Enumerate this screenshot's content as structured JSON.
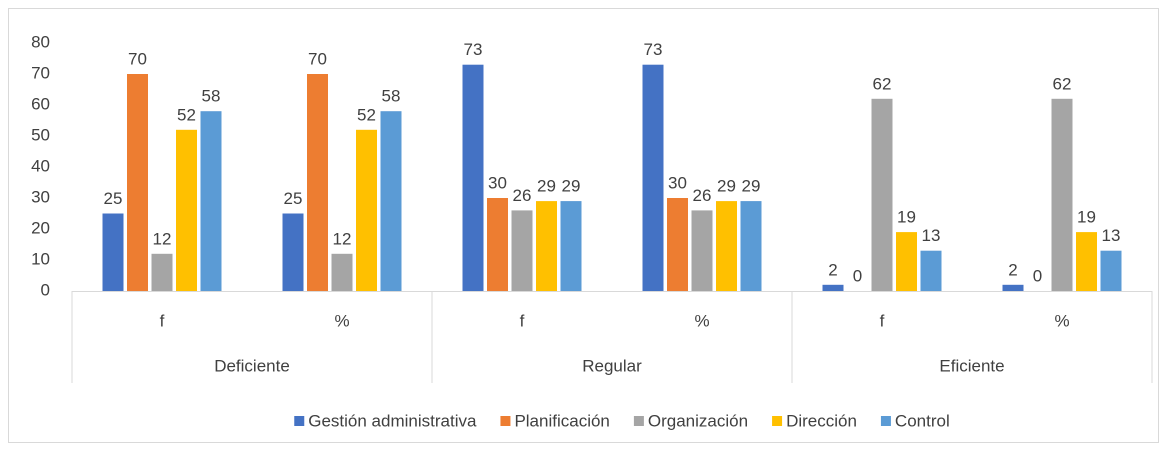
{
  "chart_data": {
    "type": "bar",
    "categories": [
      "f",
      "%",
      "f",
      "%",
      "f",
      "%"
    ],
    "groups": [
      "Deficiente",
      "Regular",
      "Eficiente"
    ],
    "series": [
      {
        "name": "Gestión administrativa",
        "color": "#4472c4",
        "values": [
          25,
          25,
          73,
          73,
          2,
          2
        ]
      },
      {
        "name": "Planificación",
        "color": "#ed7d31",
        "values": [
          70,
          70,
          30,
          30,
          0,
          0
        ]
      },
      {
        "name": "Organización",
        "color": "#a5a5a5",
        "values": [
          12,
          12,
          26,
          26,
          62,
          62
        ]
      },
      {
        "name": "Dirección",
        "color": "#ffc000",
        "values": [
          52,
          52,
          29,
          29,
          19,
          19
        ]
      },
      {
        "name": "Control",
        "color": "#5b9bd5",
        "values": [
          58,
          58,
          29,
          29,
          13,
          13
        ]
      }
    ],
    "ylim": [
      0,
      80
    ],
    "yticks": [
      0,
      10,
      20,
      30,
      40,
      50,
      60,
      70,
      80
    ],
    "grid": false,
    "data_labels": true,
    "legend": "bottom"
  }
}
